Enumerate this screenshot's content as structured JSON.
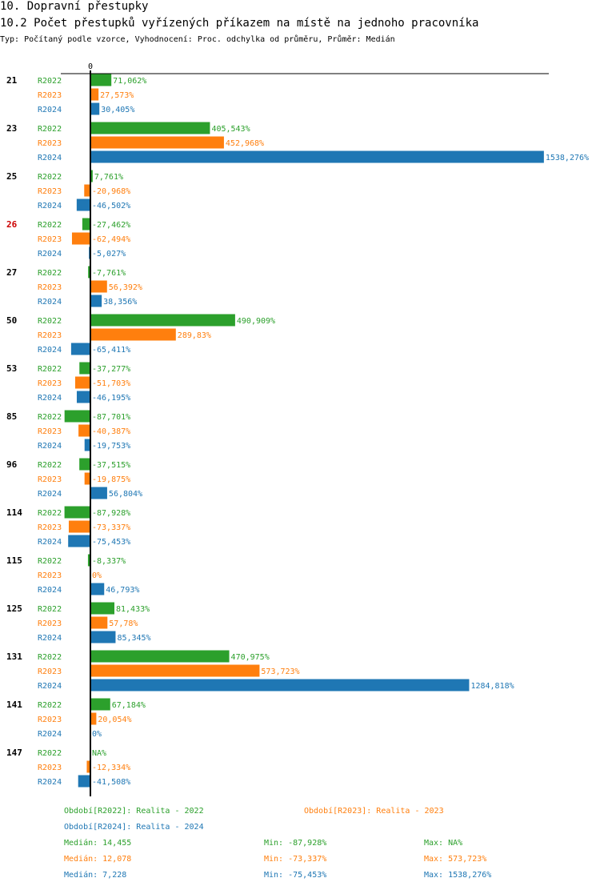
{
  "title": "10. Dopravní přestupky",
  "subtitle": "10.2 Počet přestupků vyřízených příkazem na místě na jednoho pracovníka",
  "info": "Typ: Počítaný podle vzorce, Vyhodnocení: Proc. odchylka od průměru, Průměr: Medián",
  "colors": {
    "R2022": "#2ca02c",
    "R2023": "#ff7f0e",
    "R2024": "#1f77b4",
    "text": "#000000",
    "highlight": "#cc0000"
  },
  "chart_data": {
    "type": "bar",
    "orientation": "horizontal",
    "zero_label": "0",
    "value_suffix": "%",
    "xlim": [
      -100,
      1538.276
    ],
    "series_names": [
      "R2022",
      "R2023",
      "R2024"
    ],
    "groups": [
      {
        "label": "21",
        "highlight": false,
        "labels": [
          "71,062%",
          "27,573%",
          "30,405%"
        ],
        "values": [
          71.062,
          27.573,
          30.405
        ]
      },
      {
        "label": "23",
        "highlight": false,
        "labels": [
          "405,543%",
          "452,968%",
          "1538,276%"
        ],
        "values": [
          405.543,
          452.968,
          1538.276
        ]
      },
      {
        "label": "25",
        "highlight": false,
        "labels": [
          "7,761%",
          "-20,968%",
          "-46,502%"
        ],
        "values": [
          7.761,
          -20.968,
          -46.502
        ]
      },
      {
        "label": "26",
        "highlight": true,
        "labels": [
          "-27,462%",
          "-62,494%",
          "-5,027%"
        ],
        "values": [
          -27.462,
          -62.494,
          -5.027
        ]
      },
      {
        "label": "27",
        "highlight": false,
        "labels": [
          "-7,761%",
          "56,392%",
          "38,356%"
        ],
        "values": [
          -7.761,
          56.392,
          38.356
        ]
      },
      {
        "label": "50",
        "highlight": false,
        "labels": [
          "490,909%",
          "289,83%",
          "-65,411%"
        ],
        "values": [
          490.909,
          289.83,
          -65.411
        ]
      },
      {
        "label": "53",
        "highlight": false,
        "labels": [
          "-37,277%",
          "-51,703%",
          "-46,195%"
        ],
        "values": [
          -37.277,
          -51.703,
          -46.195
        ]
      },
      {
        "label": "85",
        "highlight": false,
        "labels": [
          "-87,701%",
          "-40,387%",
          "-19,753%"
        ],
        "values": [
          -87.701,
          -40.387,
          -19.753
        ]
      },
      {
        "label": "96",
        "highlight": false,
        "labels": [
          "-37,515%",
          "-19,875%",
          "56,804%"
        ],
        "values": [
          -37.515,
          -19.875,
          56.804
        ]
      },
      {
        "label": "114",
        "highlight": false,
        "labels": [
          "-87,928%",
          "-73,337%",
          "-75,453%"
        ],
        "values": [
          -87.928,
          -73.337,
          -75.453
        ]
      },
      {
        "label": "115",
        "highlight": false,
        "labels": [
          "-8,337%",
          "0%",
          "46,793%"
        ],
        "values": [
          -8.337,
          0,
          46.793
        ]
      },
      {
        "label": "125",
        "highlight": false,
        "labels": [
          "81,433%",
          "57,78%",
          "85,345%"
        ],
        "values": [
          81.433,
          57.78,
          85.345
        ]
      },
      {
        "label": "131",
        "highlight": false,
        "labels": [
          "470,975%",
          "573,723%",
          "1284,818%"
        ],
        "values": [
          470.975,
          573.723,
          1284.818
        ]
      },
      {
        "label": "141",
        "highlight": false,
        "labels": [
          "67,184%",
          "20,054%",
          "0%"
        ],
        "values": [
          67.184,
          20.054,
          0
        ]
      },
      {
        "label": "147",
        "highlight": false,
        "labels": [
          "NA%",
          "-12,334%",
          "-41,508%"
        ],
        "values": [
          null,
          -12.334,
          -41.508
        ]
      }
    ]
  },
  "legend": {
    "periods": [
      {
        "series": "R2022",
        "text": "Období[R2022]: Realita - 2022"
      },
      {
        "series": "R2023",
        "text": "Období[R2023]: Realita - 2023"
      },
      {
        "series": "R2024",
        "text": "Období[R2024]: Realita - 2024"
      }
    ],
    "stats": [
      {
        "series": "R2022",
        "median": "Medián: 14,455",
        "min": "Min: -87,928%",
        "max": "Max: NA%"
      },
      {
        "series": "R2023",
        "median": "Medián: 12,078",
        "min": "Min: -73,337%",
        "max": "Max: 573,723%"
      },
      {
        "series": "R2024",
        "median": "Medián: 7,228",
        "min": "Min: -75,453%",
        "max": "Max: 1538,276%"
      }
    ]
  }
}
